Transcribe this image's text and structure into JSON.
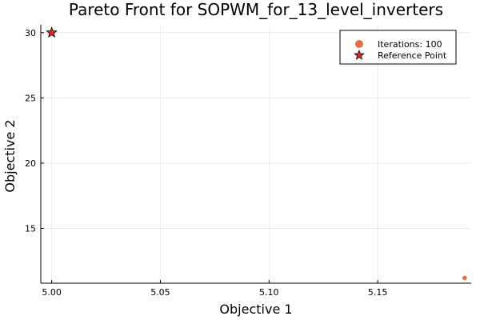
{
  "chart_data": {
    "type": "scatter",
    "title": "Pareto Front for SOPWM_for_13_level_inverters",
    "xlabel": "Objective 1",
    "ylabel": "Objective 2",
    "xlim": [
      4.995,
      5.193
    ],
    "ylim": [
      10.8,
      30.6
    ],
    "xticks": [
      5.0,
      5.05,
      5.1,
      5.15
    ],
    "xtick_labels": [
      "5.00",
      "5.05",
      "5.10",
      "5.15"
    ],
    "yticks": [
      15,
      20,
      25,
      30
    ],
    "ytick_labels": [
      "15",
      "20",
      "25",
      "30"
    ],
    "grid": true,
    "legend_position": "top-right",
    "series": [
      {
        "name": "Iterations: 100",
        "marker": "circle",
        "color": "#e26f46",
        "points": [
          {
            "x": 5.19,
            "y": 11.2
          }
        ]
      },
      {
        "name": "Reference Point",
        "marker": "star",
        "color": "#e0281b",
        "points": [
          {
            "x": 5.0,
            "y": 30.0
          }
        ]
      }
    ]
  }
}
